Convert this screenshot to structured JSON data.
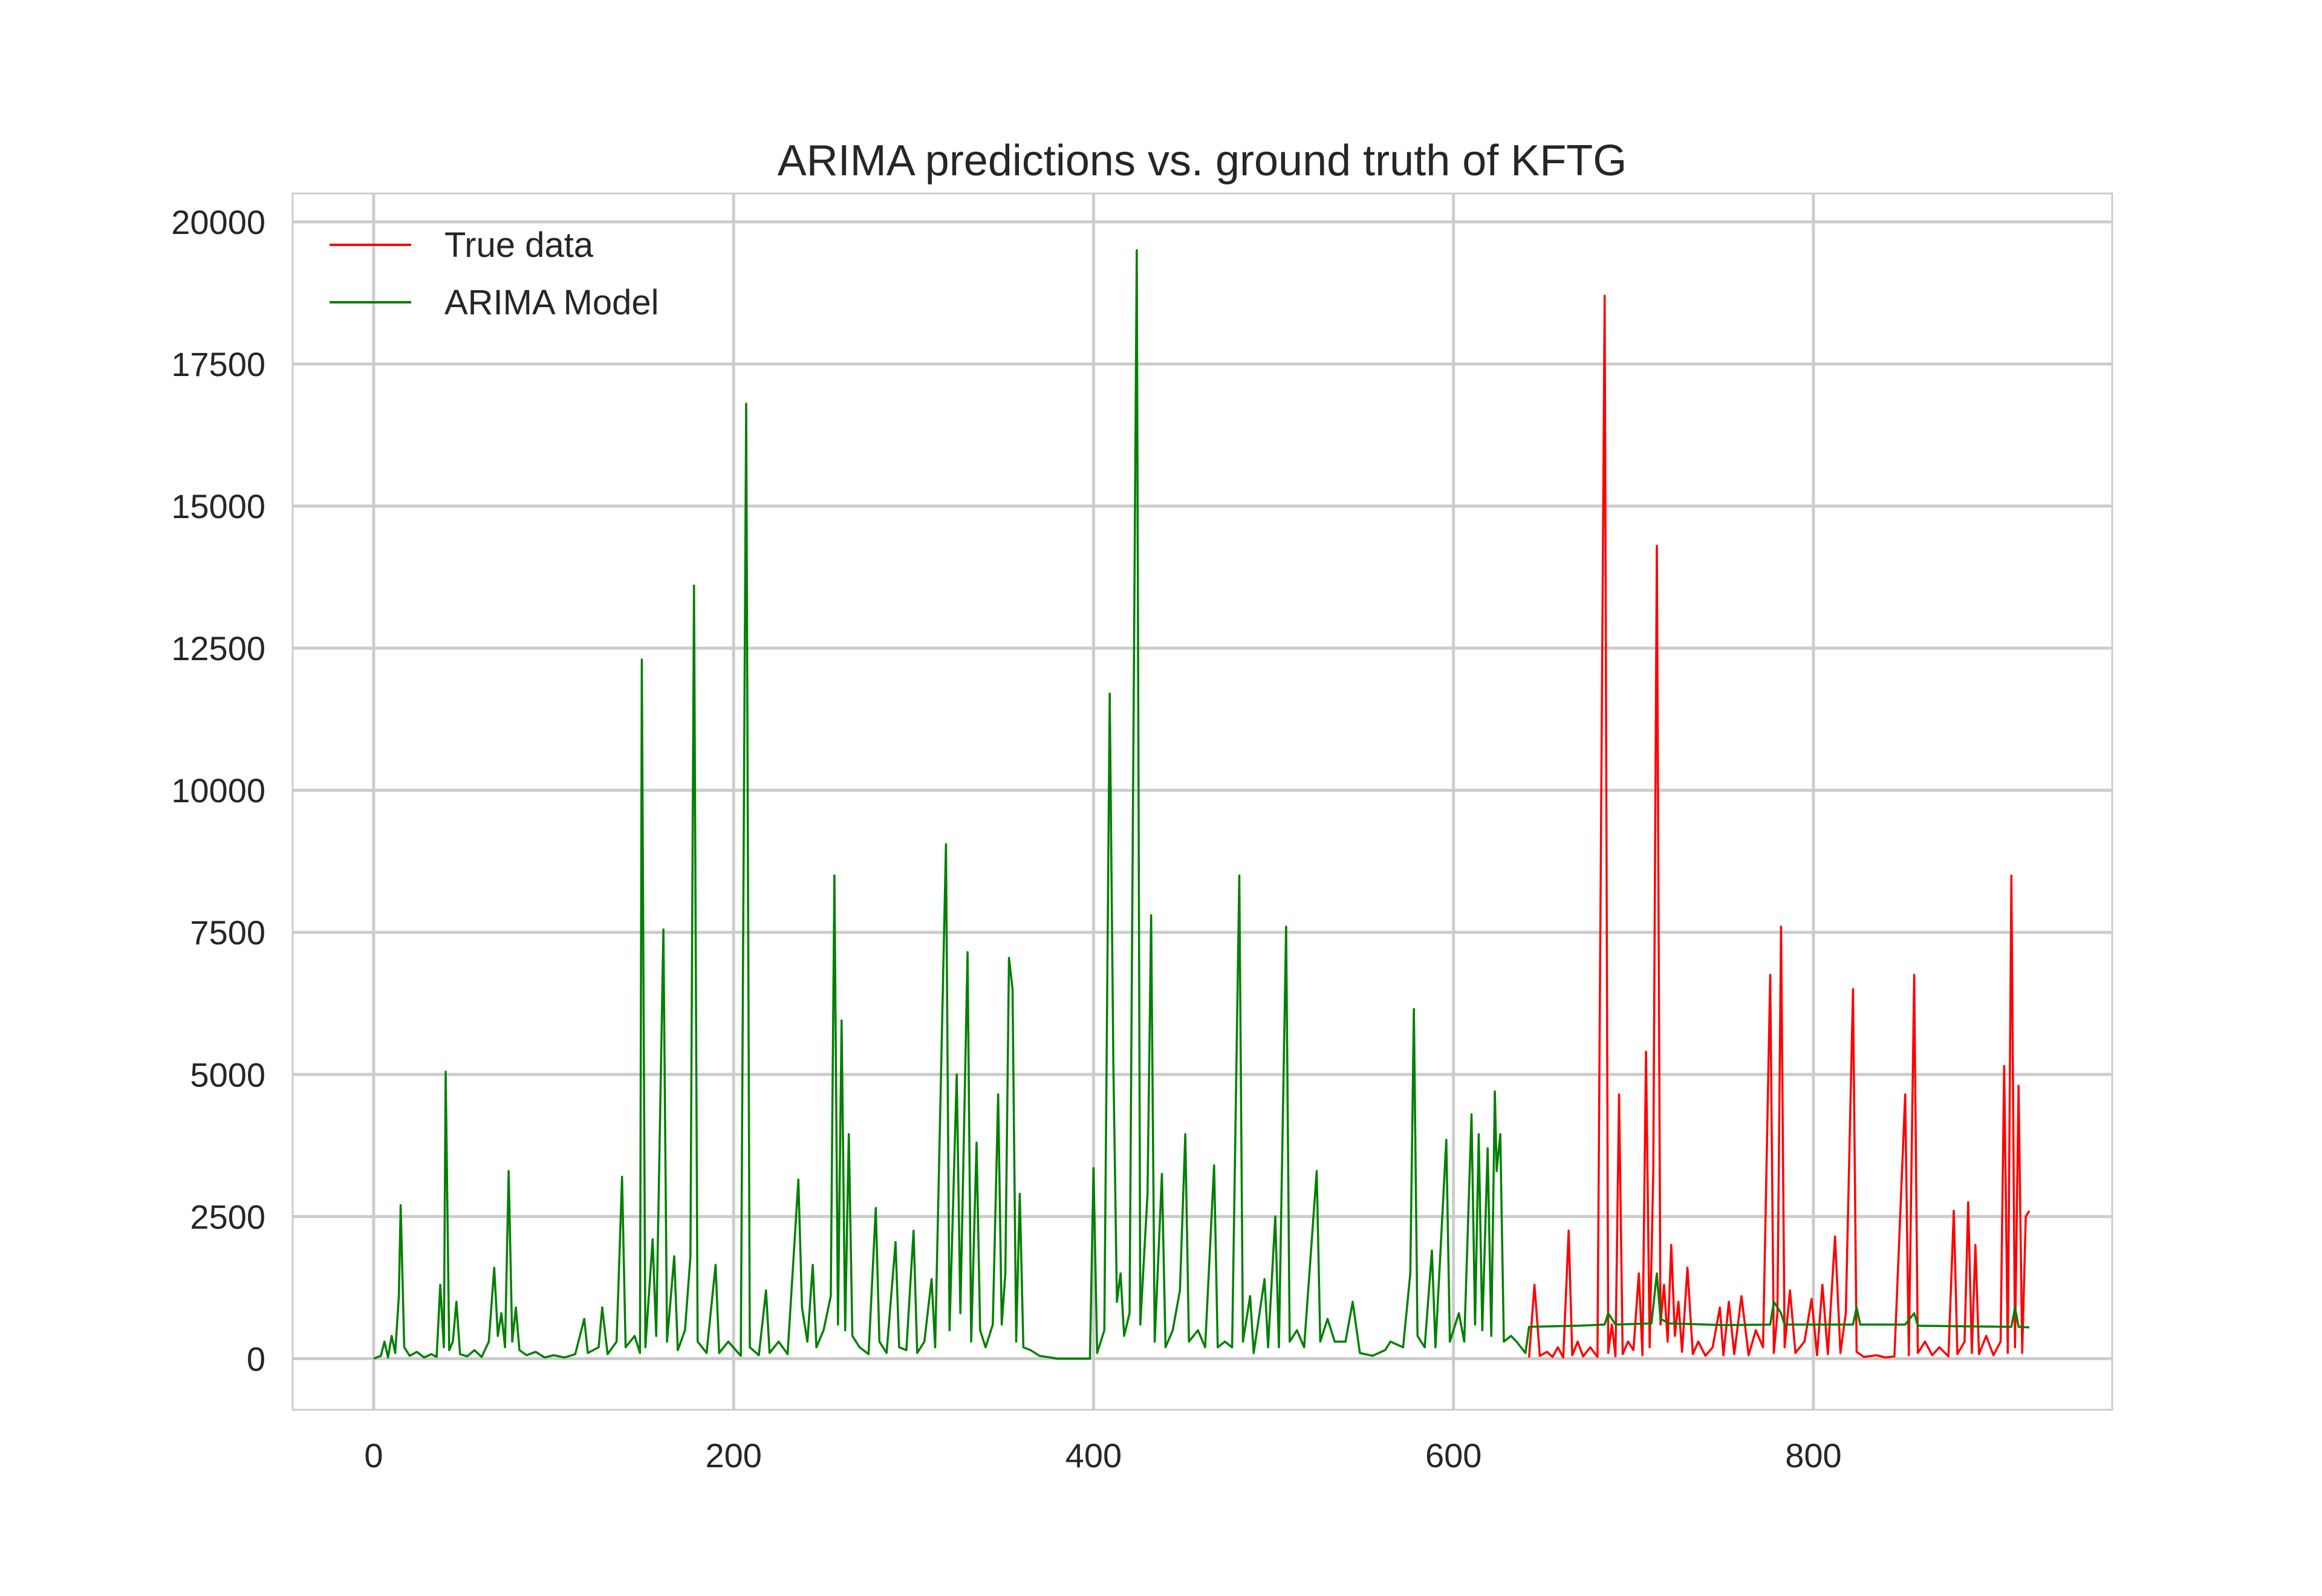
{
  "chart_data": {
    "type": "line",
    "title": "ARIMA predictions vs. ground truth of KFTG",
    "xlabel": "",
    "ylabel": "",
    "xlim": [
      -45,
      966
    ],
    "ylim": [
      -900,
      20500
    ],
    "x_ticks": [
      0,
      200,
      400,
      600,
      800
    ],
    "y_ticks": [
      0,
      2500,
      5000,
      7500,
      10000,
      12500,
      15000,
      17500,
      20000
    ],
    "grid": true,
    "legend_position": "top-left",
    "legend": [
      "True data",
      "ARIMA Model"
    ],
    "colors": {
      "true_data": "#ff0000",
      "arima": "#008000",
      "grid": "#cccccc",
      "text": "#262626"
    },
    "series": [
      {
        "name": "True data",
        "color": "#ff0000",
        "points": [
          [
            642,
            20
          ],
          [
            645,
            1300
          ],
          [
            648,
            50
          ],
          [
            652,
            120
          ],
          [
            655,
            30
          ],
          [
            658,
            200
          ],
          [
            661,
            20
          ],
          [
            664,
            2250
          ],
          [
            666,
            60
          ],
          [
            669,
            300
          ],
          [
            672,
            40
          ],
          [
            676,
            200
          ],
          [
            680,
            30
          ],
          [
            684,
            18700
          ],
          [
            686,
            100
          ],
          [
            688,
            600
          ],
          [
            690,
            40
          ],
          [
            692,
            4650
          ],
          [
            694,
            80
          ],
          [
            697,
            300
          ],
          [
            700,
            150
          ],
          [
            703,
            1500
          ],
          [
            705,
            60
          ],
          [
            707,
            5400
          ],
          [
            709,
            200
          ],
          [
            711,
            3300
          ],
          [
            713,
            14300
          ],
          [
            715,
            600
          ],
          [
            717,
            1300
          ],
          [
            719,
            300
          ],
          [
            721,
            2000
          ],
          [
            723,
            400
          ],
          [
            725,
            1000
          ],
          [
            727,
            120
          ],
          [
            730,
            1600
          ],
          [
            733,
            80
          ],
          [
            736,
            300
          ],
          [
            740,
            50
          ],
          [
            744,
            200
          ],
          [
            748,
            900
          ],
          [
            750,
            60
          ],
          [
            753,
            1000
          ],
          [
            756,
            80
          ],
          [
            760,
            1100
          ],
          [
            764,
            60
          ],
          [
            768,
            500
          ],
          [
            772,
            200
          ],
          [
            776,
            6750
          ],
          [
            778,
            100
          ],
          [
            780,
            800
          ],
          [
            782,
            7600
          ],
          [
            784,
            200
          ],
          [
            787,
            1200
          ],
          [
            790,
            100
          ],
          [
            795,
            300
          ],
          [
            799,
            1050
          ],
          [
            802,
            60
          ],
          [
            805,
            1300
          ],
          [
            808,
            80
          ],
          [
            812,
            2150
          ],
          [
            815,
            100
          ],
          [
            818,
            800
          ],
          [
            822,
            6500
          ],
          [
            824,
            120
          ],
          [
            828,
            30
          ],
          [
            835,
            60
          ],
          [
            840,
            20
          ],
          [
            845,
            40
          ],
          [
            851,
            4650
          ],
          [
            853,
            60
          ],
          [
            856,
            6750
          ],
          [
            858,
            100
          ],
          [
            862,
            300
          ],
          [
            866,
            60
          ],
          [
            870,
            200
          ],
          [
            875,
            40
          ],
          [
            878,
            2600
          ],
          [
            880,
            80
          ],
          [
            884,
            300
          ],
          [
            886,
            2750
          ],
          [
            888,
            100
          ],
          [
            890,
            2000
          ],
          [
            892,
            80
          ],
          [
            896,
            400
          ],
          [
            900,
            60
          ],
          [
            904,
            300
          ],
          [
            906,
            5150
          ],
          [
            908,
            100
          ],
          [
            910,
            8500
          ],
          [
            912,
            200
          ],
          [
            914,
            4800
          ],
          [
            916,
            100
          ],
          [
            918,
            2500
          ],
          [
            920,
            2600
          ]
        ]
      },
      {
        "name": "ARIMA Model",
        "color": "#008000",
        "points": [
          [
            0,
            0
          ],
          [
            4,
            50
          ],
          [
            6,
            300
          ],
          [
            8,
            20
          ],
          [
            10,
            400
          ],
          [
            12,
            100
          ],
          [
            14,
            1100
          ],
          [
            15,
            2700
          ],
          [
            17,
            200
          ],
          [
            20,
            50
          ],
          [
            24,
            120
          ],
          [
            28,
            20
          ],
          [
            32,
            80
          ],
          [
            35,
            30
          ],
          [
            37,
            1300
          ],
          [
            39,
            200
          ],
          [
            40,
            5050
          ],
          [
            42,
            150
          ],
          [
            44,
            300
          ],
          [
            46,
            1000
          ],
          [
            48,
            80
          ],
          [
            52,
            40
          ],
          [
            56,
            150
          ],
          [
            60,
            30
          ],
          [
            64,
            300
          ],
          [
            67,
            1600
          ],
          [
            69,
            400
          ],
          [
            71,
            800
          ],
          [
            73,
            200
          ],
          [
            75,
            3300
          ],
          [
            77,
            300
          ],
          [
            79,
            900
          ],
          [
            81,
            150
          ],
          [
            85,
            60
          ],
          [
            90,
            120
          ],
          [
            95,
            20
          ],
          [
            100,
            60
          ],
          [
            106,
            20
          ],
          [
            112,
            80
          ],
          [
            117,
            700
          ],
          [
            119,
            100
          ],
          [
            125,
            200
          ],
          [
            127,
            900
          ],
          [
            130,
            80
          ],
          [
            135,
            300
          ],
          [
            138,
            3200
          ],
          [
            140,
            200
          ],
          [
            145,
            400
          ],
          [
            148,
            100
          ],
          [
            149,
            12300
          ],
          [
            151,
            200
          ],
          [
            155,
            2100
          ],
          [
            157,
            400
          ],
          [
            161,
            7550
          ],
          [
            163,
            300
          ],
          [
            167,
            1800
          ],
          [
            169,
            150
          ],
          [
            173,
            500
          ],
          [
            176,
            1800
          ],
          [
            178,
            13600
          ],
          [
            180,
            300
          ],
          [
            185,
            100
          ],
          [
            190,
            1650
          ],
          [
            192,
            100
          ],
          [
            197,
            300
          ],
          [
            204,
            50
          ],
          [
            207,
            16800
          ],
          [
            209,
            200
          ],
          [
            214,
            60
          ],
          [
            218,
            1200
          ],
          [
            220,
            100
          ],
          [
            225,
            300
          ],
          [
            230,
            80
          ],
          [
            236,
            3150
          ],
          [
            238,
            900
          ],
          [
            241,
            300
          ],
          [
            244,
            1650
          ],
          [
            246,
            200
          ],
          [
            250,
            500
          ],
          [
            254,
            1100
          ],
          [
            256,
            8500
          ],
          [
            258,
            600
          ],
          [
            260,
            5950
          ],
          [
            262,
            500
          ],
          [
            264,
            3950
          ],
          [
            266,
            400
          ],
          [
            270,
            200
          ],
          [
            275,
            80
          ],
          [
            279,
            2650
          ],
          [
            281,
            300
          ],
          [
            285,
            100
          ],
          [
            290,
            2050
          ],
          [
            292,
            200
          ],
          [
            296,
            150
          ],
          [
            300,
            2250
          ],
          [
            302,
            100
          ],
          [
            306,
            300
          ],
          [
            310,
            1400
          ],
          [
            312,
            200
          ],
          [
            318,
            9050
          ],
          [
            320,
            500
          ],
          [
            324,
            5000
          ],
          [
            326,
            800
          ],
          [
            330,
            7150
          ],
          [
            332,
            300
          ],
          [
            335,
            3800
          ],
          [
            337,
            500
          ],
          [
            340,
            200
          ],
          [
            344,
            600
          ],
          [
            347,
            4650
          ],
          [
            349,
            600
          ],
          [
            351,
            1500
          ],
          [
            353,
            7050
          ],
          [
            355,
            6500
          ],
          [
            357,
            300
          ],
          [
            359,
            2900
          ],
          [
            361,
            200
          ],
          [
            365,
            150
          ],
          [
            370,
            50
          ],
          [
            380,
            0
          ],
          [
            390,
            0
          ],
          [
            398,
            0
          ],
          [
            400,
            3350
          ],
          [
            402,
            100
          ],
          [
            406,
            500
          ],
          [
            409,
            11700
          ],
          [
            411,
            5200
          ],
          [
            413,
            1000
          ],
          [
            415,
            1500
          ],
          [
            417,
            400
          ],
          [
            420,
            800
          ],
          [
            424,
            19500
          ],
          [
            426,
            600
          ],
          [
            430,
            2900
          ],
          [
            432,
            7800
          ],
          [
            434,
            300
          ],
          [
            438,
            3250
          ],
          [
            440,
            200
          ],
          [
            444,
            500
          ],
          [
            448,
            1200
          ],
          [
            451,
            3950
          ],
          [
            453,
            300
          ],
          [
            458,
            500
          ],
          [
            462,
            200
          ],
          [
            467,
            3400
          ],
          [
            469,
            200
          ],
          [
            473,
            300
          ],
          [
            477,
            200
          ],
          [
            481,
            8500
          ],
          [
            483,
            300
          ],
          [
            487,
            1100
          ],
          [
            489,
            100
          ],
          [
            495,
            1400
          ],
          [
            497,
            200
          ],
          [
            501,
            2500
          ],
          [
            503,
            200
          ],
          [
            507,
            7600
          ],
          [
            509,
            300
          ],
          [
            513,
            500
          ],
          [
            517,
            200
          ],
          [
            524,
            3300
          ],
          [
            526,
            300
          ],
          [
            530,
            700
          ],
          [
            534,
            300
          ],
          [
            540,
            300
          ],
          [
            544,
            1000
          ],
          [
            548,
            100
          ],
          [
            555,
            50
          ],
          [
            562,
            150
          ],
          [
            565,
            300
          ],
          [
            572,
            200
          ],
          [
            576,
            1500
          ],
          [
            578,
            6150
          ],
          [
            580,
            400
          ],
          [
            584,
            200
          ],
          [
            588,
            1900
          ],
          [
            590,
            200
          ],
          [
            596,
            3850
          ],
          [
            598,
            300
          ],
          [
            603,
            800
          ],
          [
            606,
            300
          ],
          [
            610,
            4300
          ],
          [
            612,
            600
          ],
          [
            614,
            3950
          ],
          [
            616,
            500
          ],
          [
            619,
            3700
          ],
          [
            621,
            400
          ],
          [
            623,
            4700
          ],
          [
            624,
            3300
          ],
          [
            626,
            3950
          ],
          [
            628,
            300
          ],
          [
            632,
            400
          ],
          [
            635,
            300
          ],
          [
            640,
            100
          ],
          [
            642,
            560
          ],
          [
            670,
            580
          ],
          [
            684,
            600
          ],
          [
            686,
            800
          ],
          [
            690,
            600
          ],
          [
            710,
            620
          ],
          [
            713,
            1500
          ],
          [
            715,
            700
          ],
          [
            720,
            620
          ],
          [
            750,
            590
          ],
          [
            776,
            600
          ],
          [
            778,
            1000
          ],
          [
            782,
            800
          ],
          [
            784,
            600
          ],
          [
            800,
            600
          ],
          [
            822,
            600
          ],
          [
            824,
            900
          ],
          [
            826,
            600
          ],
          [
            851,
            600
          ],
          [
            856,
            800
          ],
          [
            858,
            580
          ],
          [
            880,
            570
          ],
          [
            910,
            560
          ],
          [
            912,
            900
          ],
          [
            914,
            560
          ],
          [
            920,
            550
          ]
        ]
      }
    ]
  }
}
